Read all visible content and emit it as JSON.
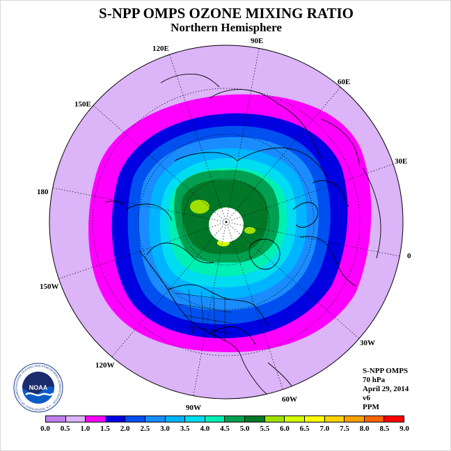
{
  "title": "S-NPP OMPS OZONE MIXING RATIO",
  "subtitle": "Northern Hemisphere",
  "longitude_labels": [
    "90E",
    "60E",
    "30E",
    "0",
    "30W",
    "60W",
    "90W",
    "120W",
    "150W",
    "180",
    "150E",
    "120E"
  ],
  "info": {
    "instrument": "S-NPP OMPS",
    "pressure": "70 hPa",
    "date": "April 29, 2014",
    "version": "v6",
    "unit": "PPM"
  },
  "logo": {
    "text": "NOAA",
    "ring_text": "NATIONAL OCEANIC AND ATMOSPHERIC ADMINISTRATION · U.S. DEPARTMENT OF COMMERCE"
  },
  "colorbar": {
    "ticks": [
      "0.0",
      "0.5",
      "1.0",
      "1.5",
      "2.0",
      "2.5",
      "3.0",
      "3.5",
      "4.0",
      "4.5",
      "5.0",
      "5.5",
      "6.0",
      "6.5",
      "7.0",
      "7.5",
      "8.0",
      "8.5",
      "9.0"
    ],
    "colors": [
      "#c080f0",
      "#dcb4f8",
      "#ff00ff",
      "#0000e0",
      "#0050f0",
      "#1a8cff",
      "#00b4ff",
      "#00dcf0",
      "#00f0b4",
      "#00a050",
      "#007828",
      "#a0e000",
      "#d4ff00",
      "#ffff00",
      "#ffd200",
      "#ffa000",
      "#ff6400",
      "#ff0000",
      "#8c5030"
    ]
  }
}
